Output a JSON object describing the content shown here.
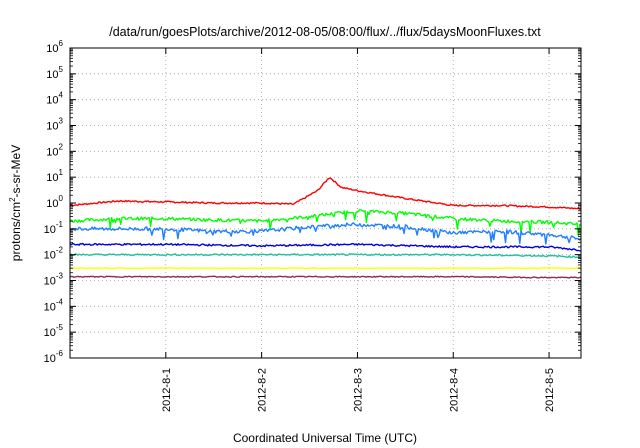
{
  "chart_data": {
    "type": "line",
    "title": "/data/run/goesPlots/archive/2012-08-05/08:00/flux/../flux/5daysMoonFluxes.txt",
    "xlabel": "Coordinated Universal Time (UTC)",
    "ylabel_parts": {
      "pre": "protons/cm",
      "sup": "2",
      "post": "-s-sr-MeV"
    },
    "x_ticks": [
      "2012-8-1",
      "2012-8-2",
      "2012-8-3",
      "2012-8-4",
      "2012-8-5"
    ],
    "y_scale": "log",
    "y_tick_base": "10",
    "y_tick_exponents": [
      "-6",
      "-5",
      "-4",
      "-3",
      "-2",
      "-1",
      "0",
      "1",
      "2",
      "3",
      "4",
      "5",
      "6"
    ],
    "ylim": [
      1e-06,
      1000000.0
    ],
    "xlim": [
      "2012-07-31T00:00",
      "2012-08-05T08:00"
    ],
    "grid": true,
    "series": [
      {
        "color": "#ff0000",
        "x": [
          "2012-07-31T00:00",
          "2012-07-31T12:00",
          "2012-08-01T00:00",
          "2012-08-01T12:00",
          "2012-08-02T00:00",
          "2012-08-02T08:00",
          "2012-08-02T14:00",
          "2012-08-02T17:00",
          "2012-08-02T20:00",
          "2012-08-03T00:00",
          "2012-08-03T12:00",
          "2012-08-04T00:00",
          "2012-08-04T12:00",
          "2012-08-05T00:00",
          "2012-08-05T08:00"
        ],
        "values": [
          0.8,
          1.2,
          1.1,
          1.0,
          1.0,
          0.9,
          3.0,
          10.0,
          4.0,
          3.0,
          1.5,
          0.8,
          0.8,
          0.7,
          0.6
        ]
      },
      {
        "color": "#00ff00",
        "x": [
          "2012-07-31T00:00",
          "2012-07-31T12:00",
          "2012-08-01T00:00",
          "2012-08-01T12:00",
          "2012-08-02T00:00",
          "2012-08-02T12:00",
          "2012-08-03T00:00",
          "2012-08-03T12:00",
          "2012-08-04T00:00",
          "2012-08-04T12:00",
          "2012-08-05T00:00",
          "2012-08-05T08:00"
        ],
        "values": [
          0.2,
          0.25,
          0.25,
          0.22,
          0.2,
          0.3,
          0.5,
          0.4,
          0.25,
          0.2,
          0.18,
          0.15
        ]
      },
      {
        "color": "#1e7fff",
        "x": [
          "2012-07-31T00:00",
          "2012-07-31T12:00",
          "2012-08-01T00:00",
          "2012-08-01T12:00",
          "2012-08-02T00:00",
          "2012-08-02T12:00",
          "2012-08-03T00:00",
          "2012-08-03T12:00",
          "2012-08-04T00:00",
          "2012-08-04T12:00",
          "2012-08-05T00:00",
          "2012-08-05T08:00"
        ],
        "values": [
          0.1,
          0.1,
          0.1,
          0.08,
          0.08,
          0.12,
          0.15,
          0.12,
          0.07,
          0.08,
          0.06,
          0.04
        ]
      },
      {
        "color": "#0000dd",
        "x": [
          "2012-07-31T00:00",
          "2012-08-01T00:00",
          "2012-08-02T00:00",
          "2012-08-03T00:00",
          "2012-08-04T00:00",
          "2012-08-05T00:00",
          "2012-08-05T08:00"
        ],
        "values": [
          0.025,
          0.025,
          0.022,
          0.025,
          0.02,
          0.02,
          0.015
        ]
      },
      {
        "color": "#20c0a0",
        "x": [
          "2012-07-31T00:00",
          "2012-08-01T00:00",
          "2012-08-02T00:00",
          "2012-08-03T00:00",
          "2012-08-04T00:00",
          "2012-08-05T00:00",
          "2012-08-05T08:00"
        ],
        "values": [
          0.01,
          0.01,
          0.01,
          0.01,
          0.01,
          0.009,
          0.008
        ]
      },
      {
        "color": "#ffff00",
        "x": [
          "2012-07-31T00:00",
          "2012-08-01T00:00",
          "2012-08-02T00:00",
          "2012-08-03T00:00",
          "2012-08-04T00:00",
          "2012-08-05T00:00",
          "2012-08-05T08:00"
        ],
        "values": [
          0.003,
          0.003,
          0.003,
          0.003,
          0.003,
          0.003,
          0.003
        ]
      },
      {
        "color": "#8b2c5a",
        "x": [
          "2012-07-31T00:00",
          "2012-08-01T00:00",
          "2012-08-02T00:00",
          "2012-08-03T00:00",
          "2012-08-04T00:00",
          "2012-08-05T00:00",
          "2012-08-05T08:00"
        ],
        "values": [
          0.0014,
          0.0014,
          0.0014,
          0.0014,
          0.0014,
          0.0013,
          0.0013
        ]
      }
    ]
  }
}
